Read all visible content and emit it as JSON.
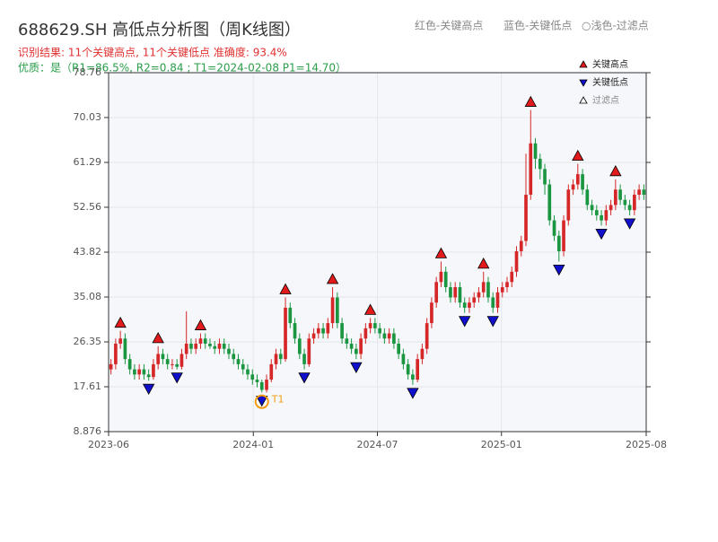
{
  "chart_data": {
    "type": "candlestick",
    "title": "688629.SH 高低点分析图（周K线图）",
    "subtitle": "识别结果: 11个关键高点, 11个关键低点  准确度: 93.4%",
    "quality": "优质：是（R1=86.5%, R2=0.84 ; T1=2024-02-08 P1=14.70）",
    "header_legend": [
      "红色-关键高点",
      "蓝色-关键低点",
      "○浅色-过滤点"
    ],
    "legend": [
      {
        "name": "关键高点",
        "color": "#e31a1c"
      },
      {
        "name": "关键低点",
        "color": "#1010cc"
      },
      {
        "name": "过滤点",
        "color": "#ffffff"
      }
    ],
    "up_color": "#d62728",
    "down_color": "#1a9641",
    "xlim": [
      "2023-06",
      "2025-08"
    ],
    "xticks": [
      "2023-06",
      "2024-01",
      "2024-07",
      "2025-01",
      "2025-08"
    ],
    "ylim": [
      8.876,
      78.76
    ],
    "yticks": [
      8.876,
      17.61,
      26.35,
      35.08,
      43.82,
      52.56,
      61.29,
      70.03,
      78.76
    ],
    "grid": true,
    "open": [
      21,
      22,
      26,
      27,
      23,
      21,
      20,
      21,
      20,
      19.5,
      22,
      24,
      23,
      22,
      22,
      21.5,
      24,
      26,
      25,
      26,
      27,
      26,
      25.5,
      25,
      26,
      25,
      24,
      23,
      22,
      21,
      20,
      19,
      18.5,
      17,
      19,
      22,
      24,
      23,
      33,
      30,
      27,
      24,
      22,
      27,
      28,
      29,
      28,
      30,
      35,
      30,
      27,
      26,
      25,
      24,
      27,
      29,
      30,
      29,
      28,
      27,
      28,
      26,
      24,
      22,
      20,
      19,
      23,
      25,
      30,
      34,
      38,
      40,
      37,
      35,
      37,
      34,
      33,
      34,
      35,
      36,
      38,
      35,
      33,
      36,
      37,
      38,
      40,
      44,
      46,
      55,
      65,
      62,
      60,
      57,
      50,
      47,
      44,
      50,
      56,
      57,
      59,
      56,
      53,
      52,
      51,
      50,
      52,
      53,
      56,
      54,
      53,
      52,
      55,
      56
    ],
    "high": [
      23,
      27,
      28.5,
      28,
      24,
      22,
      22,
      22,
      21,
      23,
      25.5,
      25,
      24,
      23,
      23,
      25,
      32.3,
      27,
      27,
      28,
      28,
      27,
      26.5,
      27,
      27,
      26,
      25,
      24,
      23,
      22,
      21,
      20,
      19,
      20,
      23,
      25,
      25,
      35,
      34,
      31,
      28,
      25,
      28,
      29,
      30,
      30,
      31,
      37,
      36,
      31,
      28,
      27,
      26,
      28,
      30,
      31,
      31,
      30,
      29,
      29,
      29,
      27,
      25,
      23,
      21,
      24,
      26,
      31,
      35,
      39,
      42,
      41,
      38,
      38,
      38,
      35,
      35,
      36,
      37,
      40,
      39,
      36,
      37,
      38,
      39,
      41,
      45,
      47,
      63,
      71.5,
      66,
      63,
      61,
      58,
      51,
      48,
      51,
      57,
      58,
      61,
      60,
      57,
      54,
      53,
      52,
      53,
      54,
      58,
      57,
      55,
      54,
      56,
      57,
      57
    ],
    "low": [
      20,
      21,
      25,
      22,
      20,
      19,
      19,
      19,
      18.8,
      19,
      21,
      22,
      21,
      21,
      21,
      21,
      23,
      24,
      24,
      25,
      25,
      25,
      24,
      24,
      24,
      23,
      22,
      21,
      20,
      19,
      18,
      17.5,
      16.5,
      16.5,
      18.5,
      21,
      22,
      22.5,
      29,
      26,
      23,
      21,
      21.5,
      26,
      27,
      27,
      27,
      29,
      29,
      26,
      25,
      24,
      23,
      23,
      26,
      28,
      28,
      27,
      26,
      26,
      25,
      23,
      21,
      19,
      18,
      18.5,
      22,
      24,
      29,
      33,
      37,
      36,
      34,
      34,
      33,
      32,
      32,
      33,
      34,
      35,
      34,
      32,
      32,
      35,
      36,
      37,
      39,
      43,
      45,
      54,
      60,
      58,
      55,
      49,
      46,
      42,
      43,
      49,
      55,
      56,
      55,
      52,
      51,
      50,
      49,
      49,
      51,
      52,
      53,
      52,
      51,
      51,
      54,
      54
    ],
    "close": [
      22,
      26,
      27,
      23,
      21,
      20,
      21,
      20,
      19.5,
      22,
      24,
      23,
      22,
      22,
      21.5,
      24,
      26,
      25,
      26,
      27,
      26,
      25.5,
      25,
      26,
      25,
      24,
      23,
      22,
      21,
      20,
      19,
      18.5,
      17,
      19,
      22,
      24,
      23,
      33,
      30,
      27,
      24,
      22,
      27,
      28,
      29,
      28,
      30,
      35,
      30,
      27,
      26,
      25,
      24,
      27,
      29,
      30,
      29,
      28,
      27,
      28,
      26,
      24,
      22,
      20,
      19,
      23,
      25,
      30,
      34,
      38,
      40,
      37,
      35,
      37,
      34,
      33,
      34,
      35,
      36,
      38,
      35,
      33,
      36,
      37,
      38,
      40,
      44,
      46,
      55,
      65,
      62,
      60,
      57,
      50,
      47,
      44,
      50,
      56,
      57,
      59,
      56,
      53,
      52,
      51,
      50,
      52,
      53,
      56,
      54,
      53,
      52,
      55,
      56,
      55
    ],
    "key_highs": [
      {
        "i": 2,
        "value": 28.5
      },
      {
        "i": 10,
        "value": 25.5
      },
      {
        "i": 19,
        "value": 28
      },
      {
        "i": 37,
        "value": 35
      },
      {
        "i": 47,
        "value": 37
      },
      {
        "i": 55,
        "value": 31
      },
      {
        "i": 70,
        "value": 42
      },
      {
        "i": 79,
        "value": 40
      },
      {
        "i": 89,
        "value": 71.5
      },
      {
        "i": 99,
        "value": 61
      },
      {
        "i": 107,
        "value": 58
      }
    ],
    "key_lows": [
      {
        "i": 8,
        "value": 18.8
      },
      {
        "i": 14,
        "value": 21
      },
      {
        "i": 32,
        "value": 16.5
      },
      {
        "i": 41,
        "value": 21
      },
      {
        "i": 52,
        "value": 23
      },
      {
        "i": 64,
        "value": 18
      },
      {
        "i": 75,
        "value": 32
      },
      {
        "i": 81,
        "value": 32
      },
      {
        "i": 95,
        "value": 42
      },
      {
        "i": 104,
        "value": 49
      },
      {
        "i": 110,
        "value": 51
      }
    ],
    "annotation": {
      "text": "T1",
      "i": 32,
      "value": 14.7
    }
  }
}
